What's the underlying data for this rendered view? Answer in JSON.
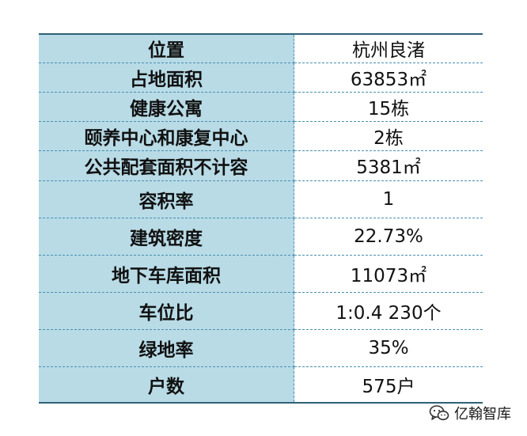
{
  "rows": [
    {
      "key": "位置",
      "value": "杭州良渚"
    },
    {
      "key": "占地面积",
      "value": "63853㎡"
    },
    {
      "key": "健康公寓",
      "value": "15栋"
    },
    {
      "key": "颐养中心和康复中心",
      "value": "2栋"
    },
    {
      "key": "公共配套面积不计容",
      "value": "5381㎡"
    },
    {
      "key": "容积率",
      "value": "1"
    },
    {
      "key": "建筑密度",
      "value": "22.73%"
    },
    {
      "key": "地下车库面积",
      "value": "11073㎡"
    },
    {
      "key": "车位比",
      "value": "1:0.4 230个"
    },
    {
      "key": "绿地率",
      "value": "35%"
    },
    {
      "key": "户数",
      "value": "575户"
    }
  ],
  "watermark": {
    "text": "亿翰智库",
    "icon": "wechat-chat-icon"
  },
  "colors": {
    "key_background": "#b8dbe6",
    "rule": "#2e6277",
    "dashed_line": "#4a8fb0"
  }
}
